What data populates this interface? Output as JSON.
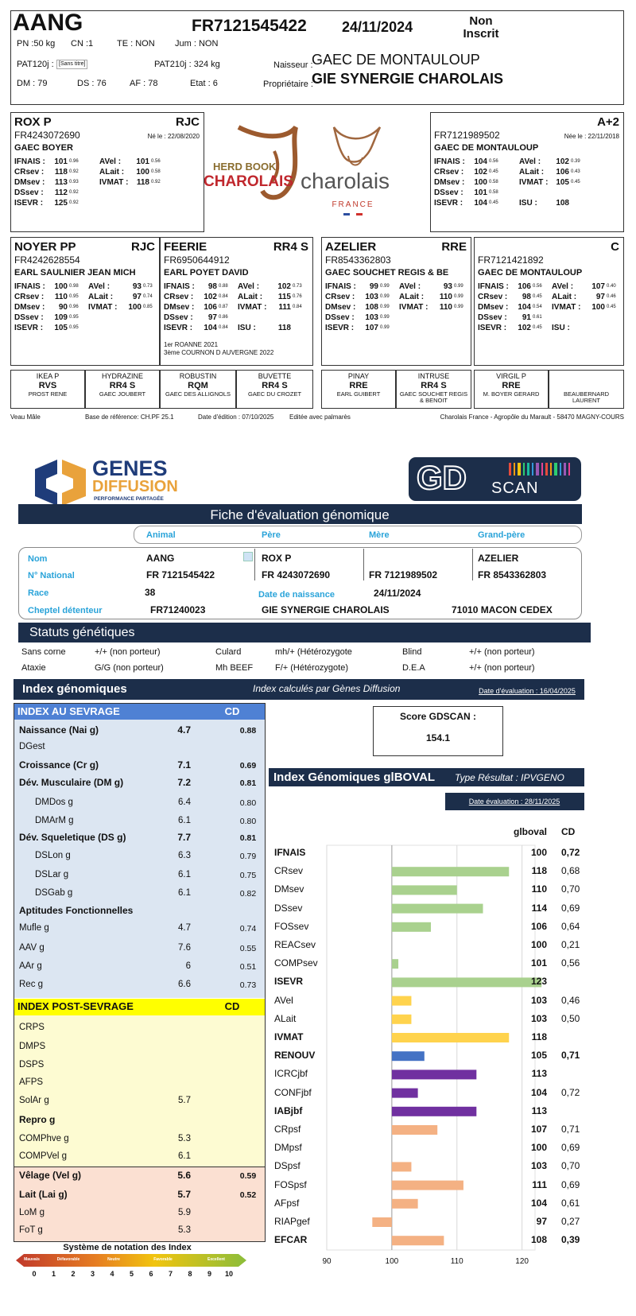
{
  "header": {
    "name": "AANG",
    "national_id": "FR7121545422",
    "birth_date": "24/11/2024",
    "status": [
      "Non",
      "Inscrit"
    ],
    "fields": [
      "PN :50 kg",
      "CN :1",
      "TE : NON",
      "Jum : NON",
      "PAT120j :",
      "[Sans titre]",
      "PAT210j : 324 kg",
      "DM : 79",
      "DS : 76",
      "AF : 78",
      "Etat : 6"
    ],
    "breeder_label": "Naisseur :",
    "breeder": "GAEC DE MONTAULOUP",
    "owner_label": "Propriétaire :",
    "owner": "GIE SYNERGIE CHAROLAIS"
  },
  "logos": {
    "herdbook": "HERD BOOK",
    "charolais_red": "CHAROLAIS",
    "charolais": "charolais",
    "france": "FRANCE"
  },
  "parents": [
    {
      "name": "ROX P",
      "code": "RJC",
      "id": "FR4243072690",
      "born": "Né le : 22/08/2020",
      "breeder": "GAEC BOYER",
      "left": [
        [
          "IFNAIS :",
          "101",
          "0.96"
        ],
        [
          "CRsev :",
          "118",
          "0.92"
        ],
        [
          "DMsev :",
          "113",
          "0.93"
        ],
        [
          "DSsev :",
          "112",
          "0.92"
        ],
        [
          "ISEVR :",
          "125",
          "0.92"
        ]
      ],
      "right": [
        [
          "AVel :",
          "101",
          "0.56"
        ],
        [
          "ALait :",
          "100",
          "0.58"
        ],
        [
          "IVMAT :",
          "118",
          "0.92"
        ]
      ]
    },
    {
      "code": "A+2",
      "id": "FR7121989502",
      "born": "Née le : 22/11/2018",
      "breeder": "GAEC DE MONTAULOUP",
      "left": [
        [
          "IFNAIS :",
          "104",
          "0.56"
        ],
        [
          "CRsev :",
          "102",
          "0.45"
        ],
        [
          "DMsev :",
          "100",
          "0.58"
        ],
        [
          "DSsev :",
          "101",
          "0.58"
        ],
        [
          "ISEVR :",
          "104",
          "0.45"
        ]
      ],
      "right": [
        [
          "AVel :",
          "102",
          "0.39"
        ],
        [
          "ALait :",
          "106",
          "0.43"
        ],
        [
          "IVMAT :",
          "105",
          "0.45"
        ],
        [
          "ISU :",
          "108",
          null
        ]
      ]
    },
    {
      "name": "NOYER PP",
      "code": "RJC",
      "id": "FR4242628554",
      "breeder": "EARL SAULNIER JEAN MICH",
      "left": [
        [
          "IFNAIS :",
          "100",
          "0.98"
        ],
        [
          "CRsev :",
          "110",
          "0.95"
        ],
        [
          "DMsev :",
          "90",
          "0.96"
        ],
        [
          "DSsev :",
          "109",
          "0.95"
        ],
        [
          "ISEVR :",
          "105",
          "0.95"
        ]
      ],
      "right": [
        [
          "AVel :",
          "93",
          "0.73"
        ],
        [
          "ALait :",
          "97",
          "0.74"
        ],
        [
          "IVMAT :",
          "100",
          "0.85"
        ]
      ]
    },
    {
      "name": "FEERIE",
      "code": "RR4 S",
      "id": "FR6950644912",
      "breeder": "EARL POYET DAVID",
      "left": [
        [
          "IFNAIS :",
          "98",
          "0.88"
        ],
        [
          "CRsev :",
          "102",
          "0.84"
        ],
        [
          "DMsev :",
          "106",
          "0.87"
        ],
        [
          "DSsev :",
          "97",
          "0.86"
        ],
        [
          "ISEVR :",
          "104",
          "0.84"
        ]
      ],
      "right": [
        [
          "AVel :",
          "102",
          "0.73"
        ],
        [
          "ALait :",
          "115",
          "0.76"
        ],
        [
          "IVMAT :",
          "111",
          "0.84"
        ],
        [
          "ISU :",
          "118",
          null
        ]
      ],
      "notes": [
        "1er  ROANNE 2021",
        "3ème  COURNON D AUVERGNE 2022"
      ]
    },
    {
      "name": "AZELIER",
      "code": "RRE",
      "id": "FR8543362803",
      "breeder": "GAEC SOUCHET REGIS & BE",
      "left": [
        [
          "IFNAIS :",
          "99",
          "0.99"
        ],
        [
          "CRsev :",
          "103",
          "0.99"
        ],
        [
          "DMsev :",
          "108",
          "0.99"
        ],
        [
          "DSsev :",
          "103",
          "0.99"
        ],
        [
          "ISEVR :",
          "107",
          "0.99"
        ]
      ],
      "right": [
        [
          "AVel :",
          "93",
          "0.99"
        ],
        [
          "ALait :",
          "110",
          "0.99"
        ],
        [
          "IVMAT :",
          "110",
          "0.99"
        ]
      ]
    },
    {
      "code": "C",
      "id": "FR7121421892",
      "breeder": "GAEC DE MONTAULOUP",
      "left": [
        [
          "IFNAIS :",
          "106",
          "0.56"
        ],
        [
          "CRsev :",
          "98",
          "0.45"
        ],
        [
          "DMsev :",
          "104",
          "0.54"
        ],
        [
          "DSsev :",
          "91",
          "0.61"
        ],
        [
          "ISEVR :",
          "102",
          "0.45"
        ]
      ],
      "right": [
        [
          "AVel :",
          "107",
          "0.40"
        ],
        [
          "ALait :",
          "97",
          "0.46"
        ],
        [
          "IVMAT :",
          "100",
          "0.45"
        ],
        [
          "ISU :",
          null,
          null
        ]
      ]
    }
  ],
  "great_grandparents": [
    {
      "name": "IKEA P",
      "code": "RVS",
      "breeder": "PROST RENE"
    },
    {
      "name": "HYDRAZINE",
      "code": "RR4 S",
      "breeder": "GAEC JOUBERT"
    },
    {
      "name": "ROBUSTIN",
      "code": "RQM",
      "breeder": "GAEC DES ALLIGNOLS"
    },
    {
      "name": "BUVETTE",
      "code": "RR4 S",
      "breeder": "GAEC DU CROZET"
    },
    {
      "name": "PINAY",
      "code": "RRE",
      "breeder": "EARL GUIBERT"
    },
    {
      "name": "INTRUSE",
      "code": "RR4 S",
      "breeder": "GAEC SOUCHET REGIS & BENOIT"
    },
    {
      "name": "VIRGIL P",
      "code": "RRE",
      "breeder": "M. BOYER GERARD"
    },
    {
      "breeder": "BEAUBERNARD LAURENT"
    }
  ],
  "footer": [
    "Veau Mâle",
    "Base de référence: CH.PF 25.1",
    "Date d'édition : 07/10/2025",
    "Editée avec palmarès",
    "Charolais France - Agropôle du Marault - 58470 MAGNY-COURS"
  ],
  "genes": {
    "logo_main": "GENES",
    "logo_sub": "DIFFUSION",
    "tagline": "PERFORMANCE PARTAGÉE",
    "gd": "GD",
    "scan": "SCAN"
  },
  "evaluation": {
    "title": "Fiche d'évaluation génomique",
    "columns": [
      "Animal",
      "Père",
      "Mère",
      "Grand-père"
    ],
    "labels": [
      "Nom",
      "N° National",
      "Race",
      "Cheptel détenteur"
    ],
    "names": [
      "AANG",
      "ROX P",
      "AZELIER"
    ],
    "nationals": [
      "FR 7121545422",
      "FR 4243072690",
      "FR 7121989502",
      "FR 8543362803"
    ],
    "race": "38",
    "birth_label": "Date de naissance",
    "birth": "24/11/2024",
    "herd": [
      "FR71240023",
      "GIE SYNERGIE CHAROLAIS",
      "71010 MACON CEDEX"
    ]
  },
  "status": {
    "title": "Statuts génétiques",
    "items": [
      [
        "Sans corne",
        "+/+ (non porteur)"
      ],
      [
        "Culard",
        "mh/+ (Hétérozygote"
      ],
      [
        "Blind",
        "+/+ (non porteur)"
      ],
      [
        "Ataxie",
        "G/G (non porteur)"
      ],
      [
        "Mh BEEF",
        "F/+ (Hétérozygote)"
      ],
      [
        "D.E.A",
        "+/+ (non porteur)"
      ]
    ]
  },
  "genomic": {
    "title": "Index génomiques",
    "subtitle": "Index calculés par Gènes Diffusion",
    "date": "Date d'évaluation : 16/04/2025",
    "sections": [
      {
        "title": "INDEX AU SEVRAGE",
        "cd_header": "CD",
        "rows": [
          {
            "label": "Naissance (Nai g)",
            "value": "4.7",
            "cd": "0.88",
            "bold": true
          },
          {
            "label": "DGest"
          },
          {
            "label": "Croissance (Cr g)",
            "value": "7.1",
            "cd": "0.69",
            "bold": true
          },
          {
            "label": "Dév. Musculaire (DM g)",
            "value": "7.2",
            "cd": "0.81",
            "bold": true
          },
          {
            "label": "DMDos g",
            "value": "6.4",
            "cd": "0.80",
            "indent": true
          },
          {
            "label": "DMArM g",
            "value": "6.1",
            "cd": "0.80",
            "indent": true
          },
          {
            "label": "Dév. Squeletique (DS g)",
            "value": "7.7",
            "cd": "0.81",
            "bold": true
          },
          {
            "label": "DSLon g",
            "value": "6.3",
            "cd": "0.79",
            "indent": true
          },
          {
            "label": "DSLar g",
            "value": "6.1",
            "cd": "0.75",
            "indent": true
          },
          {
            "label": "DSGab g",
            "value": "6.1",
            "cd": "0.82",
            "indent": true
          },
          {
            "label": "Aptitudes Fonctionnelles",
            "bold": true
          },
          {
            "label": "Mufle g",
            "value": "4.7",
            "cd": "0.74"
          },
          {
            "label": "AAV g",
            "value": "7.6",
            "cd": "0.55"
          },
          {
            "label": "AAr g",
            "value": "6",
            "cd": "0.51"
          },
          {
            "label": "Rec g",
            "value": "6.6",
            "cd": "0.73"
          }
        ]
      },
      {
        "title": "INDEX POST-SEVRAGE",
        "cd_header": "CD",
        "rows": [
          {
            "label": "CRPS"
          },
          {
            "label": "DMPS"
          },
          {
            "label": "DSPS"
          },
          {
            "label": "AFPS"
          },
          {
            "label": "SolAr g",
            "value": "5.7"
          },
          {
            "label": "Repro g",
            "bold": true
          },
          {
            "label": "COMPhve g",
            "value": "5.3"
          },
          {
            "label": "COMPVel g",
            "value": "6.1"
          }
        ]
      },
      {
        "rows": [
          {
            "label": "Vêlage (Vel g)",
            "value": "5.6",
            "cd": "0.59",
            "bold": true
          },
          {
            "label": "Lait (Lai g)",
            "value": "5.7",
            "cd": "0.52",
            "bold": true
          },
          {
            "label": "LoM g",
            "value": "5.9"
          },
          {
            "label": "FoT g",
            "value": "5.3"
          }
        ]
      }
    ]
  },
  "scale": {
    "title": "Système de notation des Index",
    "levels": [
      "Mauvais",
      "Défavorable",
      "Neutre",
      "Favorable",
      "Excellent"
    ],
    "ticks": [
      0,
      1,
      2,
      3,
      4,
      5,
      6,
      7,
      8,
      9,
      10
    ]
  },
  "score": {
    "label": "Score GDSCAN :",
    "value": "154.1"
  },
  "chart_data": {
    "type": "bar",
    "orientation": "horizontal",
    "title": "Index Génomiques glBOVAL",
    "subtitle": "Type Résultat : IPVGENO",
    "date": "Date évaluation : 28/11/2025",
    "value_header": "glboval",
    "cd_header": "CD",
    "categories": [
      "IFNAIS",
      "CRsev",
      "DMsev",
      "DSsev",
      "FOSsev",
      "REACsev",
      "COMPsev",
      "ISEVR",
      "AVel",
      "ALait",
      "IVMAT",
      "RENOUV",
      "ICRCjbf",
      "CONFjbf",
      "IABjbf",
      "CRpsf",
      "DMpsf",
      "DSpsf",
      "FOSpsf",
      "AFpsf",
      "RIAPgef",
      "EFCAR"
    ],
    "values": [
      100,
      118,
      110,
      114,
      106,
      100,
      101,
      123,
      103,
      103,
      118,
      105,
      113,
      104,
      113,
      107,
      100,
      103,
      111,
      104,
      97,
      108
    ],
    "cd": [
      "0,72",
      "0,68",
      "0,70",
      "0,69",
      "0,64",
      "0,21",
      "0,56",
      null,
      "0,46",
      "0,50",
      null,
      "0,71",
      null,
      "0,72",
      null,
      "0,71",
      "0,69",
      "0,70",
      "0,69",
      "0,61",
      "0,27",
      "0,39"
    ],
    "colors": [
      "#a9d18e",
      "#a9d18e",
      "#a9d18e",
      "#a9d18e",
      "#a9d18e",
      "#a9d18e",
      "#a9d18e",
      "#a9d18e",
      "#ffd34d",
      "#ffd34d",
      "#ffd34d",
      "#4472c4",
      "#7030a0",
      "#7030a0",
      "#7030a0",
      "#f4b183",
      "#f4b183",
      "#f4b183",
      "#f4b183",
      "#f4b183",
      "#f4b183",
      "#f4b183"
    ],
    "bold": [
      true,
      false,
      false,
      false,
      false,
      false,
      false,
      true,
      false,
      false,
      true,
      true,
      false,
      false,
      true,
      false,
      false,
      false,
      false,
      false,
      false,
      true
    ],
    "baseline": 100,
    "xlim": [
      90,
      122
    ],
    "xticks": [
      90,
      100,
      110,
      120
    ],
    "grid": true
  }
}
